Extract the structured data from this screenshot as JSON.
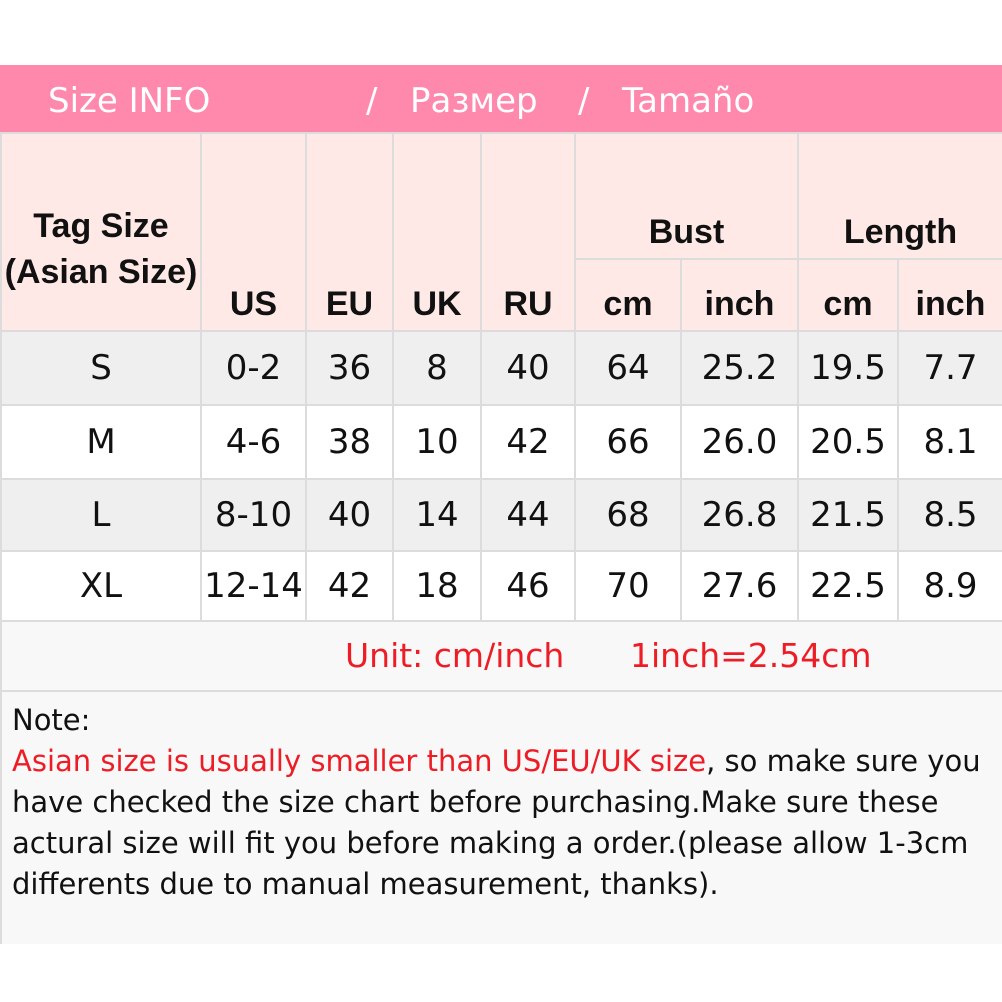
{
  "title": {
    "en": "Size INFO",
    "sep1": "/",
    "ru": "Размер",
    "sep2": "/",
    "es": "Tamaño"
  },
  "colors": {
    "title_bg": "#ff88ad",
    "header_bg": "#ffe9e7",
    "accent_red": "#ee1c25"
  },
  "headers": {
    "tag": "Tag Size (Asian Size)",
    "us": "US",
    "eu": "EU",
    "uk": "UK",
    "ru": "RU",
    "bust": "Bust",
    "length": "Length",
    "cm": "cm",
    "inch": "inch"
  },
  "rows": [
    [
      "S",
      "0-2",
      "36",
      "8",
      "40",
      "64",
      "25.2",
      "19.5",
      "7.7"
    ],
    [
      "M",
      "4-6",
      "38",
      "10",
      "42",
      "66",
      "26.0",
      "20.5",
      "8.1"
    ],
    [
      "L",
      "8-10",
      "40",
      "14",
      "44",
      "68",
      "26.8",
      "21.5",
      "8.5"
    ],
    [
      "XL",
      "12-14",
      "42",
      "18",
      "46",
      "70",
      "27.6",
      "22.5",
      "8.9"
    ]
  ],
  "unit": {
    "label": "Unit: cm/inch",
    "conversion": "1inch=2.54cm"
  },
  "note": {
    "heading": "Note:",
    "highlight": "Asian size is usually smaller than US/EU/UK size",
    "body": ", so make sure you have checked the size chart before purchasing.Make sure these actural size will fit you before making a order.(please allow 1-3cm differents due to manual measurement, thanks)."
  }
}
